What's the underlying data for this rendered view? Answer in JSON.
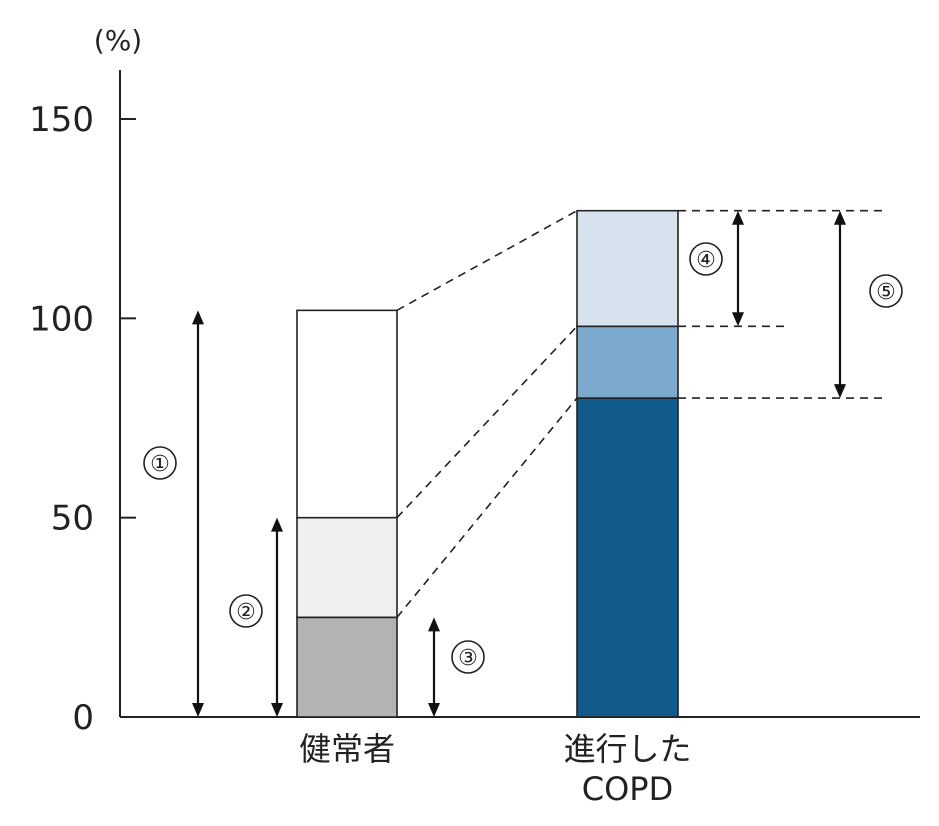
{
  "chart_data": {
    "type": "bar",
    "stacked": true,
    "unit": "(%)",
    "ylim": [
      0,
      150
    ],
    "yticks": [
      0,
      50,
      100,
      150
    ],
    "categories": [
      {
        "label_lines": [
          "健常者"
        ]
      },
      {
        "label_lines": [
          "進行した",
          "COPD"
        ]
      }
    ],
    "bars": [
      {
        "segments": [
          {
            "from": 0,
            "to": 25,
            "color": "#b3b3b3"
          },
          {
            "from": 25,
            "to": 50,
            "color": "#efefef"
          },
          {
            "from": 50,
            "to": 102,
            "color": "#ffffff"
          }
        ]
      },
      {
        "segments": [
          {
            "from": 0,
            "to": 80,
            "color": "#115a8c"
          },
          {
            "from": 80,
            "to": 98,
            "color": "#7ea9cf"
          },
          {
            "from": 98,
            "to": 127,
            "color": "#d6e3ef"
          }
        ]
      }
    ],
    "annotations": [
      {
        "label": "①",
        "from": 0,
        "to": 102
      },
      {
        "label": "②",
        "from": 0,
        "to": 50
      },
      {
        "label": "③",
        "from": 0,
        "to": 25
      },
      {
        "label": "④",
        "from": 98,
        "to": 127
      },
      {
        "label": "⑤",
        "from": 80,
        "to": 127
      }
    ]
  }
}
